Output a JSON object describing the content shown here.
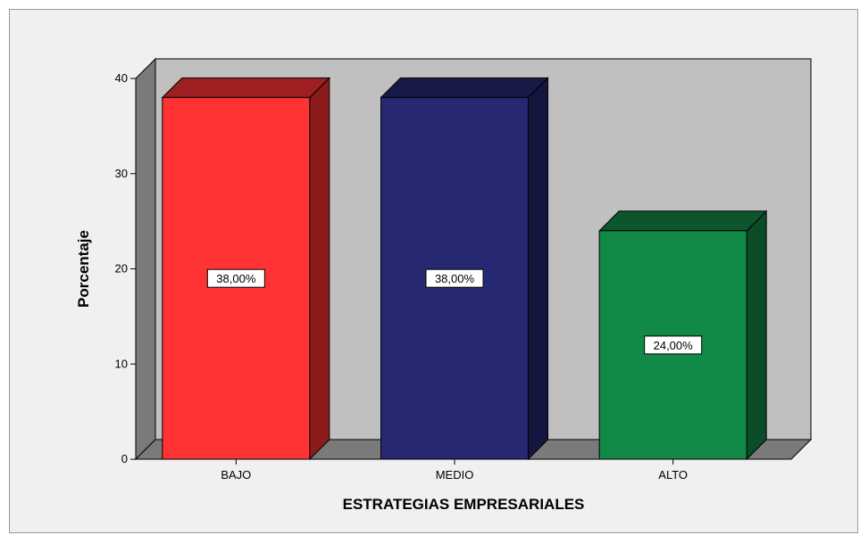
{
  "chart_data": {
    "type": "bar",
    "categories": [
      "BAJO",
      "MEDIO",
      "ALTO"
    ],
    "values": [
      38,
      38,
      24
    ],
    "data_labels": [
      "38,00%",
      "38,00%",
      "24,00%"
    ],
    "colors": [
      "#ff3333",
      "#272872",
      "#118a47"
    ],
    "title": "",
    "xlabel": "ESTRATEGIAS EMPRESARIALES",
    "ylabel": "Porcentaje",
    "ylim": [
      0,
      40
    ],
    "yticks": [
      "0",
      "10",
      "20",
      "30",
      "40"
    ],
    "grid": false,
    "style": "3d",
    "plot_background": "#c0c0c0",
    "chart_background": "#f0f0f0"
  }
}
